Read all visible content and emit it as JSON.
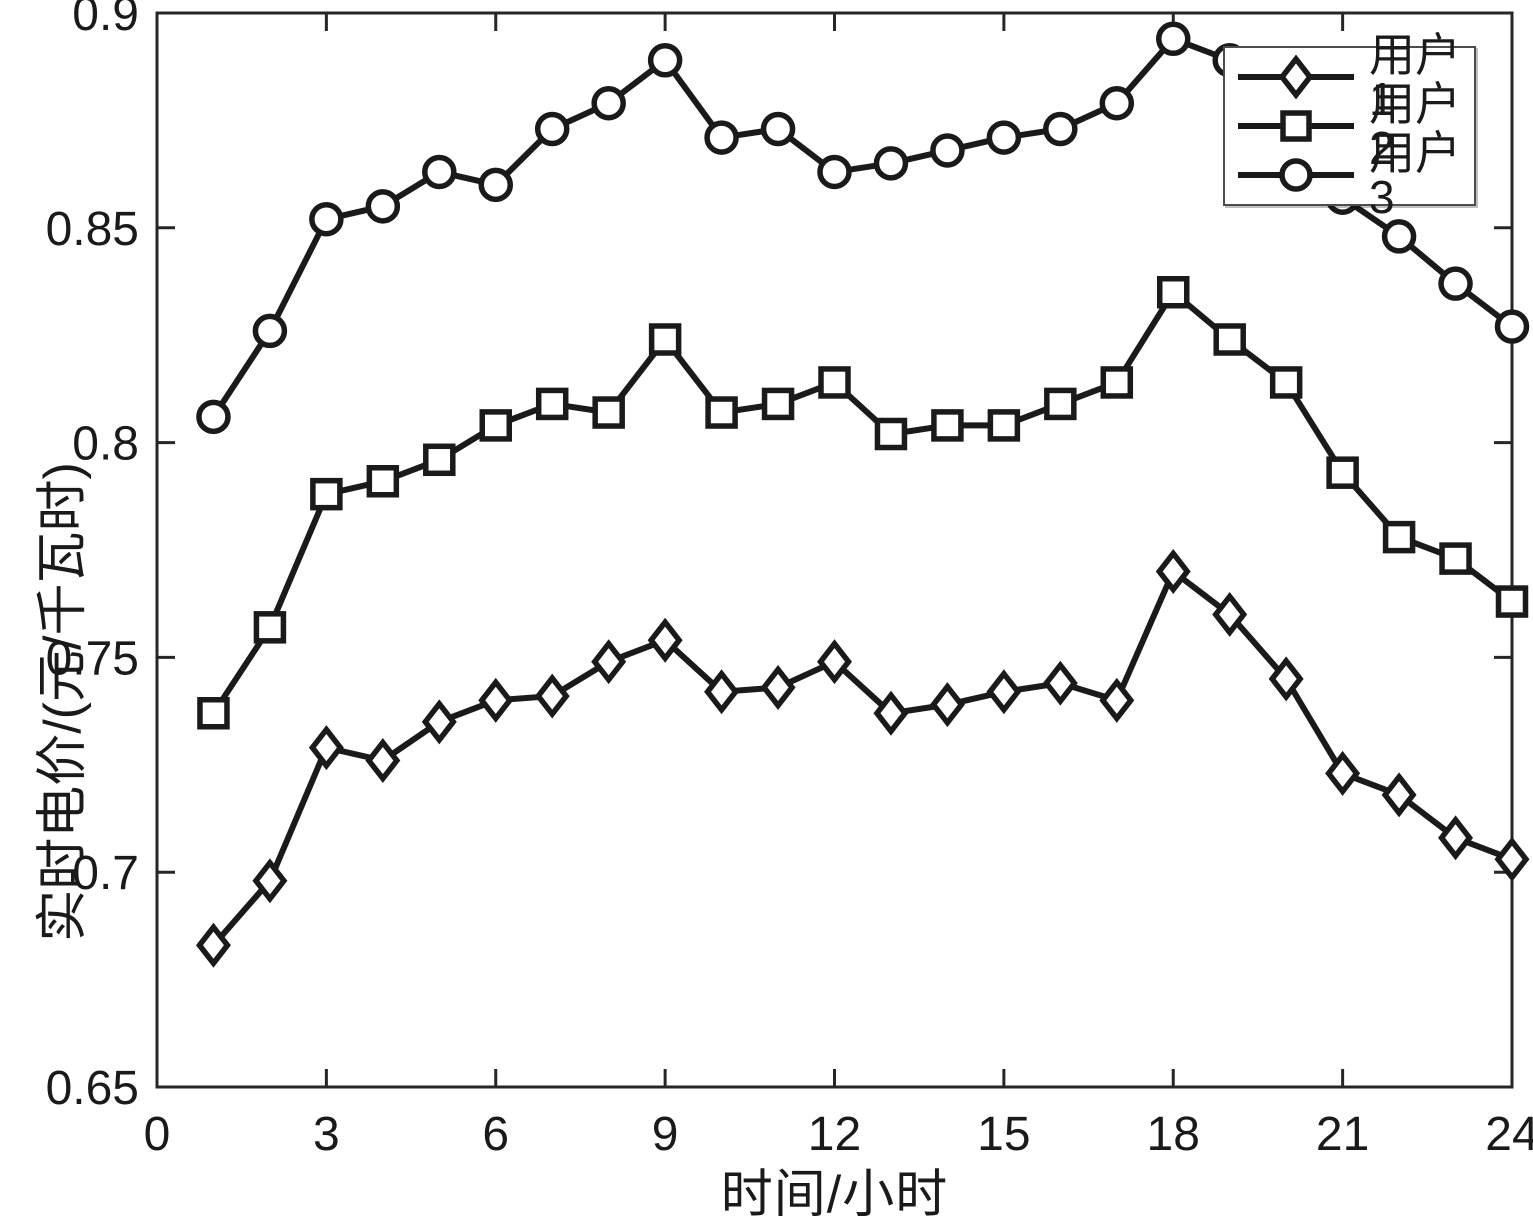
{
  "figure": {
    "background": "#ffffff"
  },
  "chart_data": {
    "type": "line",
    "title": "",
    "xlabel": "时间/小时",
    "ylabel": "实时电价/(元/千瓦时)",
    "xlim": [
      0,
      24
    ],
    "ylim": [
      0.65,
      0.9
    ],
    "x_ticks": [
      0,
      3,
      6,
      9,
      12,
      15,
      18,
      21,
      24
    ],
    "x_tick_labels": [
      "0",
      "3",
      "6",
      "9",
      "12",
      "15",
      "18",
      "21",
      "24"
    ],
    "y_ticks": [
      0.65,
      0.7,
      0.75,
      0.8,
      0.85,
      0.9
    ],
    "y_tick_labels": [
      "0.65",
      "0.7",
      "0.75",
      "0.8",
      "0.85",
      "0.9"
    ],
    "grid": false,
    "box": true,
    "legend_position": "top-right",
    "line_color": "#1a1a1a",
    "axis_color": "#262626",
    "x": [
      1,
      2,
      3,
      4,
      5,
      6,
      7,
      8,
      9,
      10,
      11,
      12,
      13,
      14,
      15,
      16,
      17,
      18,
      19,
      20,
      21,
      22,
      23,
      24
    ],
    "series": [
      {
        "name": "用户1",
        "marker": "diamond",
        "values": [
          0.683,
          0.698,
          0.729,
          0.726,
          0.735,
          0.74,
          0.741,
          0.749,
          0.754,
          0.742,
          0.743,
          0.749,
          0.737,
          0.739,
          0.742,
          0.744,
          0.74,
          0.77,
          0.76,
          0.745,
          0.723,
          0.718,
          0.708,
          0.703
        ]
      },
      {
        "name": "用户2",
        "marker": "square",
        "values": [
          0.737,
          0.757,
          0.788,
          0.791,
          0.796,
          0.804,
          0.809,
          0.807,
          0.824,
          0.807,
          0.809,
          0.814,
          0.802,
          0.804,
          0.804,
          0.809,
          0.814,
          0.835,
          0.824,
          0.814,
          0.793,
          0.778,
          0.773,
          0.763
        ]
      },
      {
        "name": "用户3",
        "marker": "circle",
        "values": [
          0.806,
          0.826,
          0.852,
          0.855,
          0.863,
          0.86,
          0.873,
          0.879,
          0.889,
          0.871,
          0.873,
          0.863,
          0.865,
          0.868,
          0.871,
          0.873,
          0.879,
          0.894,
          0.889,
          0.875,
          0.857,
          0.848,
          0.837,
          0.827
        ]
      }
    ]
  }
}
